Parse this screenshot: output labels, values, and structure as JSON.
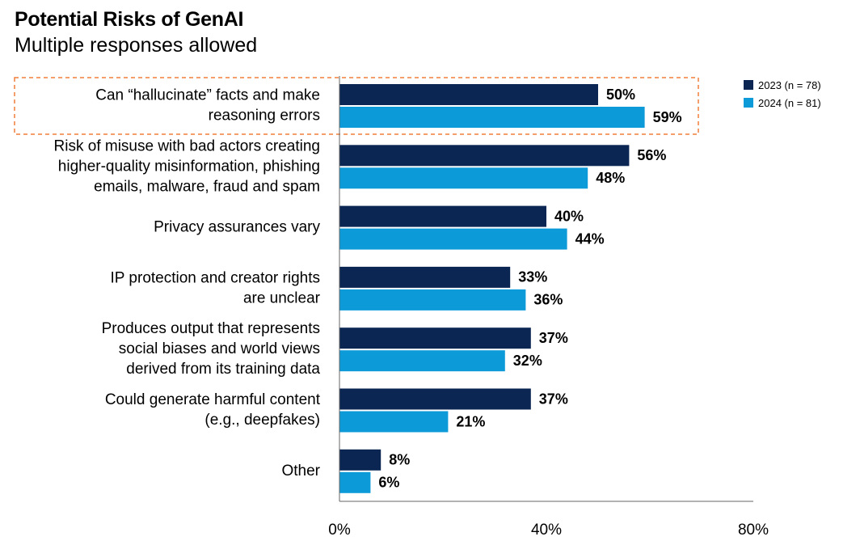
{
  "chart_data": {
    "type": "bar",
    "orientation": "horizontal",
    "title": "Potential Risks of GenAI",
    "subtitle": "Multiple responses allowed",
    "categories": [
      [
        "Can “hallucinate” facts and make",
        "reasoning errors"
      ],
      [
        "Risk of misuse with bad actors creating",
        "higher-quality misinformation, phishing",
        "emails, malware, fraud and spam"
      ],
      [
        "Privacy assurances vary"
      ],
      [
        "IP protection and creator rights",
        "are unclear"
      ],
      [
        "Produces output that represents",
        "social biases and world views",
        "derived from its training data"
      ],
      [
        "Could generate harmful content",
        "(e.g., deepfakes)"
      ],
      [
        "Other"
      ]
    ],
    "series": [
      {
        "name": "2023 (n = 78)",
        "color": "#0b2653",
        "values": [
          50,
          56,
          40,
          33,
          37,
          37,
          8
        ]
      },
      {
        "name": "2024 (n = 81)",
        "color": "#0d9ad8",
        "values": [
          59,
          48,
          44,
          36,
          32,
          21,
          6
        ]
      }
    ],
    "value_labels": [
      [
        "50%",
        "56%",
        "40%",
        "33%",
        "37%",
        "37%",
        "8%"
      ],
      [
        "59%",
        "48%",
        "44%",
        "36%",
        "32%",
        "21%",
        "6%"
      ]
    ],
    "xlim": [
      0,
      80
    ],
    "xticks": [
      0,
      40,
      80
    ],
    "xtick_labels": [
      "0%",
      "40%",
      "80%"
    ],
    "grid": false,
    "legend_position": "top-right",
    "highlight_category_index": 0,
    "highlight_color": "#f07f3c"
  }
}
